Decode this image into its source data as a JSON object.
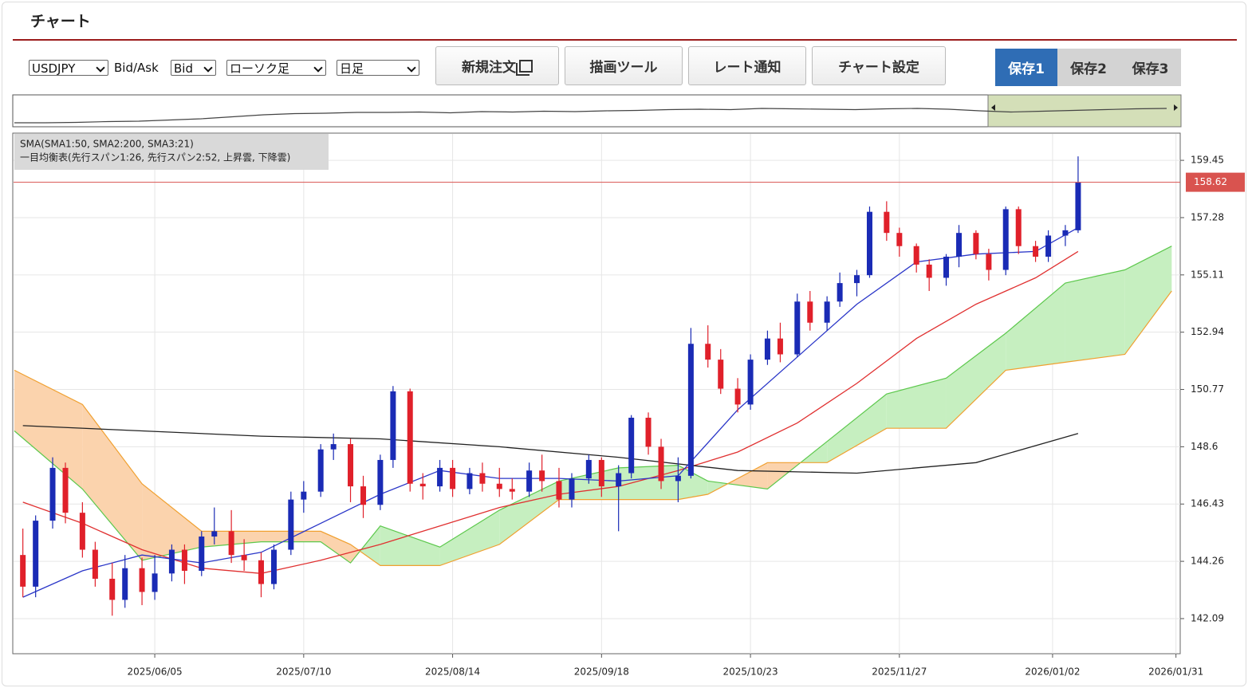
{
  "header": {
    "title": "チャート"
  },
  "toolbar": {
    "symbol": "USDJPY",
    "bid_ask_label": "Bid/Ask",
    "bid_ask": "Bid",
    "chart_style": "ローソク足",
    "period": "日足",
    "buttons": [
      "新規注文",
      "描画ツール",
      "レート通知",
      "チャート設定"
    ],
    "tabs": [
      "保存1",
      "保存2",
      "保存3"
    ]
  },
  "chart_data": {
    "type": "candlestick",
    "legend": [
      "SMA(SMA1:50, SMA2:200, SMA3:21)",
      "一目均衡表(先行スパン1:26, 先行スパン2:52, 上昇雲, 下降雲)"
    ],
    "xlim": [
      "2025/05/03",
      "2026/02/01"
    ],
    "xticks": [
      "2025/06/05",
      "2025/07/10",
      "2025/08/14",
      "2025/09/18",
      "2025/10/23",
      "2025/11/27",
      "2026/01/02",
      "2026/01/31"
    ],
    "ylim": [
      140.76,
      160.45
    ],
    "yticks": [
      142.09,
      144.26,
      146.43,
      148.6,
      150.77,
      152.94,
      155.11,
      157.28,
      159.45
    ],
    "grid": true,
    "up_color": "#1a2bb5",
    "down_color": "#e0202a",
    "last_price": 158.62,
    "last_price_color": "#d9534f",
    "x": [
      "2025/05/05",
      "2025/05/08",
      "2025/05/12",
      "2025/05/15",
      "2025/05/19",
      "2025/05/22",
      "2025/05/26",
      "2025/05/29",
      "2025/06/02",
      "2025/06/05",
      "2025/06/09",
      "2025/06/12",
      "2025/06/16",
      "2025/06/19",
      "2025/06/23",
      "2025/06/26",
      "2025/06/30",
      "2025/07/03",
      "2025/07/07",
      "2025/07/10",
      "2025/07/14",
      "2025/07/17",
      "2025/07/21",
      "2025/07/24",
      "2025/07/28",
      "2025/07/31",
      "2025/08/04",
      "2025/08/07",
      "2025/08/11",
      "2025/08/14",
      "2025/08/18",
      "2025/08/21",
      "2025/08/25",
      "2025/08/28",
      "2025/09/01",
      "2025/09/04",
      "2025/09/08",
      "2025/09/11",
      "2025/09/15",
      "2025/09/18",
      "2025/09/22",
      "2025/09/25",
      "2025/09/29",
      "2025/10/02",
      "2025/10/06",
      "2025/10/09",
      "2025/10/13",
      "2025/10/16",
      "2025/10/20",
      "2025/10/23",
      "2025/10/27",
      "2025/10/30",
      "2025/11/03",
      "2025/11/06",
      "2025/11/10",
      "2025/11/13",
      "2025/11/17",
      "2025/11/20",
      "2025/11/24",
      "2025/11/27",
      "2025/12/01",
      "2025/12/04",
      "2025/12/08",
      "2025/12/11",
      "2025/12/15",
      "2025/12/18",
      "2025/12/22",
      "2025/12/25",
      "2025/12/29",
      "2026/01/01",
      "2026/01/05",
      "2026/01/08"
    ],
    "open": [
      144.5,
      143.3,
      145.8,
      147.8,
      146.1,
      144.7,
      143.6,
      142.8,
      144.0,
      143.1,
      143.8,
      144.7,
      143.9,
      145.2,
      145.4,
      144.5,
      144.3,
      143.4,
      144.7,
      146.6,
      146.9,
      148.5,
      148.7,
      147.1,
      146.4,
      148.1,
      150.7,
      147.2,
      147.1,
      147.8,
      147.0,
      147.6,
      147.2,
      147.0,
      146.9,
      147.7,
      147.3,
      146.6,
      147.4,
      148.1,
      147.1,
      147.6,
      149.7,
      148.6,
      147.3,
      147.5,
      152.5,
      151.9,
      150.8,
      150.2,
      151.9,
      152.7,
      152.1,
      154.1,
      153.3,
      154.1,
      154.8,
      155.1,
      157.5,
      156.7,
      156.2,
      155.5,
      155.0,
      155.8,
      156.7,
      155.9,
      155.3,
      157.6,
      156.2,
      155.8,
      156.6,
      156.8
    ],
    "high": [
      145.5,
      146.0,
      148.2,
      148.0,
      146.5,
      145.0,
      144.2,
      144.5,
      144.4,
      144.5,
      144.9,
      144.9,
      145.4,
      146.3,
      146.2,
      145.1,
      144.6,
      144.9,
      146.9,
      147.3,
      148.7,
      149.1,
      148.9,
      147.5,
      148.3,
      150.9,
      150.8,
      147.6,
      148.1,
      148.1,
      147.8,
      148.0,
      147.8,
      147.4,
      148.0,
      148.3,
      147.8,
      147.6,
      148.3,
      148.2,
      147.9,
      149.8,
      149.9,
      148.9,
      148.2,
      153.1,
      153.2,
      152.3,
      151.2,
      152.1,
      153.0,
      153.3,
      154.4,
      154.5,
      154.3,
      155.2,
      155.3,
      157.7,
      157.9,
      156.9,
      156.3,
      155.7,
      155.9,
      157.0,
      156.8,
      156.1,
      157.7,
      157.7,
      156.4,
      156.8,
      157.0,
      159.6
    ],
    "low": [
      142.9,
      142.9,
      145.5,
      145.7,
      144.4,
      143.3,
      142.2,
      142.5,
      142.6,
      142.8,
      143.5,
      143.4,
      143.7,
      144.9,
      144.2,
      143.9,
      142.9,
      143.2,
      144.5,
      146.1,
      146.7,
      148.1,
      146.5,
      145.9,
      146.2,
      147.8,
      146.9,
      146.6,
      146.9,
      146.7,
      146.8,
      146.9,
      146.7,
      146.6,
      146.7,
      146.9,
      146.3,
      146.3,
      147.2,
      146.7,
      145.4,
      147.4,
      148.3,
      147.0,
      146.5,
      147.4,
      151.6,
      150.6,
      149.9,
      150.0,
      151.7,
      151.8,
      152.0,
      153.0,
      153.0,
      153.9,
      154.3,
      155.0,
      156.4,
      155.8,
      155.2,
      154.5,
      154.7,
      155.4,
      155.7,
      154.9,
      155.1,
      155.9,
      155.6,
      155.6,
      156.2,
      156.7
    ],
    "close": [
      143.3,
      145.8,
      147.8,
      146.1,
      144.7,
      143.6,
      142.8,
      144.0,
      143.1,
      143.8,
      144.7,
      143.9,
      145.2,
      145.4,
      144.5,
      144.3,
      143.4,
      144.7,
      146.6,
      146.9,
      148.5,
      148.7,
      147.1,
      146.4,
      148.1,
      150.7,
      147.2,
      147.1,
      147.8,
      147.0,
      147.6,
      147.2,
      147.0,
      146.9,
      147.7,
      147.3,
      146.6,
      147.4,
      148.1,
      147.1,
      147.6,
      149.7,
      148.6,
      147.3,
      147.5,
      152.5,
      151.9,
      150.8,
      150.2,
      151.9,
      152.7,
      152.1,
      154.1,
      153.3,
      154.1,
      154.8,
      155.1,
      157.5,
      156.7,
      156.2,
      155.5,
      155.0,
      155.8,
      156.7,
      155.9,
      155.3,
      157.6,
      156.2,
      155.8,
      156.6,
      156.8,
      158.62
    ],
    "lines": [
      {
        "color": "#e03030",
        "x": [
          "2025/05/05",
          "2025/05/19",
          "2025/06/02",
          "2025/06/16",
          "2025/06/30",
          "2025/07/14",
          "2025/07/28",
          "2025/08/11",
          "2025/08/25",
          "2025/09/08",
          "2025/09/22",
          "2025/10/06",
          "2025/10/20",
          "2025/11/03",
          "2025/11/17",
          "2025/12/01",
          "2025/12/15",
          "2025/12/29",
          "2026/01/08"
        ],
        "values": [
          146.5,
          145.7,
          144.7,
          144.0,
          143.8,
          144.3,
          144.9,
          145.6,
          146.3,
          146.8,
          147.1,
          147.7,
          148.4,
          149.5,
          151.0,
          152.7,
          154.0,
          155.0,
          156.0
        ]
      },
      {
        "color": "#222222",
        "x": [
          "2025/05/05",
          "2025/06/02",
          "2025/06/30",
          "2025/07/28",
          "2025/08/25",
          "2025/09/22",
          "2025/10/20",
          "2025/11/17",
          "2025/12/15",
          "2026/01/08"
        ],
        "values": [
          149.4,
          149.2,
          149.0,
          148.9,
          148.6,
          148.2,
          147.7,
          147.6,
          148.0,
          149.1
        ]
      },
      {
        "color": "#2a36c8",
        "x": [
          "2025/05/05",
          "2025/05/19",
          "2025/06/02",
          "2025/06/16",
          "2025/06/30",
          "2025/07/14",
          "2025/07/28",
          "2025/08/11",
          "2025/08/25",
          "2025/09/08",
          "2025/09/22",
          "2025/10/06",
          "2025/10/20",
          "2025/11/03",
          "2025/11/17",
          "2025/12/01",
          "2025/12/15",
          "2025/12/29",
          "2026/01/08"
        ],
        "values": [
          142.9,
          143.9,
          144.5,
          144.2,
          144.6,
          145.7,
          146.8,
          147.7,
          147.4,
          147.4,
          147.3,
          147.5,
          150.0,
          152.0,
          154.0,
          155.6,
          155.9,
          156.0,
          156.9
        ]
      }
    ],
    "cloud": {
      "up_color": "#c6efc0",
      "up_line": "#5cc84c",
      "down_color": "#fbd3ad",
      "down_line": "#f0a030",
      "x": [
        "2025/05/03",
        "2025/05/19",
        "2025/06/02",
        "2025/06/16",
        "2025/06/30",
        "2025/07/14",
        "2025/07/21",
        "2025/07/28",
        "2025/08/11",
        "2025/08/25",
        "2025/09/08",
        "2025/09/22",
        "2025/10/06",
        "2025/10/13",
        "2025/10/27",
        "2025/11/10",
        "2025/11/24",
        "2025/12/08",
        "2025/12/22",
        "2026/01/05",
        "2026/01/19",
        "2026/01/30"
      ],
      "span_a": [
        149.2,
        147.0,
        144.3,
        144.8,
        145.0,
        145.0,
        144.2,
        145.6,
        144.8,
        146.2,
        147.3,
        147.8,
        147.9,
        147.3,
        147.0,
        148.8,
        150.6,
        151.2,
        152.9,
        154.8,
        155.3,
        156.2
      ],
      "span_b": [
        151.5,
        150.2,
        147.2,
        145.4,
        145.4,
        145.4,
        144.9,
        144.1,
        144.1,
        144.9,
        146.6,
        146.6,
        146.6,
        146.8,
        148.0,
        148.0,
        149.3,
        149.3,
        151.5,
        151.8,
        152.1,
        154.5
      ]
    },
    "navigator": {
      "color": "#444444",
      "band_color": "#d4dfb8",
      "ylim": [
        90,
        170
      ],
      "values": [
        100,
        100,
        101,
        103,
        104,
        107,
        110,
        115,
        120,
        123,
        124,
        126,
        126,
        127,
        125,
        128,
        127,
        129,
        128,
        130,
        131,
        133,
        134,
        133,
        136,
        135,
        134,
        133,
        135,
        136,
        134,
        130,
        127,
        129,
        131,
        133,
        135,
        136
      ]
    }
  }
}
